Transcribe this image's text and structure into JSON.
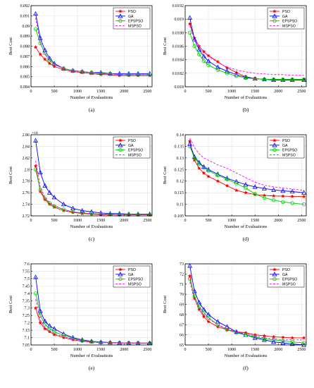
{
  "styles": {
    "PSO": {
      "color": "#ff0000",
      "marker": "star",
      "dash": ""
    },
    "GA": {
      "color": "#0000ff",
      "marker": "triangle",
      "dash": ""
    },
    "EPSPSO": {
      "color": "#00cc00",
      "marker": "circle",
      "dash": ""
    },
    "MSPSO": {
      "color": "#ff00ff",
      "marker": "none",
      "dash": "3,2"
    }
  },
  "chart_data": [
    {
      "type": "line",
      "caption": "(a)",
      "xlabel": "Number of Evaluations",
      "ylabel": "Best Cost",
      "exponent": "",
      "xlim": [
        0,
        2600
      ],
      "ylim": [
        0.084,
        0.092
      ],
      "xticks": [
        0,
        500,
        1000,
        1500,
        2000,
        2500
      ],
      "xtick_labels": [
        "0",
        "500",
        "1000",
        "1500",
        "2000",
        "2500"
      ],
      "yticks": [
        0.084,
        0.085,
        0.086,
        0.087,
        0.088,
        0.089,
        0.09,
        0.091,
        0.092
      ],
      "ytick_labels": [
        "0.084",
        "0.085",
        "0.086",
        "0.087",
        "0.088",
        "0.089",
        "0.09",
        "0.091",
        "0.092"
      ],
      "x": [
        100,
        200,
        300,
        400,
        500,
        700,
        900,
        1100,
        1300,
        1500,
        1700,
        1900,
        2100,
        2300,
        2550
      ],
      "series": [
        {
          "name": "PSO",
          "values": [
            0.0879,
            0.0872,
            0.0867,
            0.0863,
            0.086,
            0.0857,
            0.0855,
            0.0854,
            0.0853,
            0.0852,
            0.0852,
            0.0851,
            0.0851,
            0.0851,
            0.0851
          ]
        },
        {
          "name": "GA",
          "values": [
            0.0912,
            0.0888,
            0.0876,
            0.0868,
            0.0863,
            0.0858,
            0.0856,
            0.0855,
            0.0854,
            0.0854,
            0.0853,
            0.0853,
            0.0853,
            0.0853,
            0.0853
          ]
        },
        {
          "name": "EPSPSO",
          "values": [
            0.0897,
            0.0883,
            0.0873,
            0.0866,
            0.0862,
            0.0858,
            0.0856,
            0.0855,
            0.0854,
            0.0853,
            0.0853,
            0.0852,
            0.0852,
            0.0852,
            0.0852
          ]
        },
        {
          "name": "MSPSO",
          "values": [
            0.0908,
            0.0884,
            0.0872,
            0.0866,
            0.0862,
            0.0858,
            0.0856,
            0.0855,
            0.0854,
            0.0853,
            0.0853,
            0.0852,
            0.0852,
            0.0852,
            0.0852
          ]
        }
      ]
    },
    {
      "type": "line",
      "caption": "(b)",
      "xlabel": "Number of Evaluations",
      "ylabel": "Best Cost",
      "exponent": "",
      "xlim": [
        0,
        2600
      ],
      "ylim": [
        0.018,
        0.0192
      ],
      "xticks": [
        0,
        500,
        1000,
        1500,
        2000,
        2500
      ],
      "xtick_labels": [
        "0",
        "500",
        "1000",
        "1500",
        "2000",
        "2500"
      ],
      "yticks": [
        0.018,
        0.0182,
        0.0184,
        0.0186,
        0.0188,
        0.019,
        0.0192
      ],
      "ytick_labels": [
        "0.018",
        "0.0182",
        "0.0184",
        "0.0186",
        "0.0188",
        "0.019",
        "0.0192"
      ],
      "x": [
        100,
        200,
        300,
        400,
        500,
        700,
        900,
        1100,
        1300,
        1500,
        1700,
        1900,
        2100,
        2300,
        2550
      ],
      "series": [
        {
          "name": "PSO",
          "values": [
            0.01893,
            0.01872,
            0.0186,
            0.01852,
            0.01846,
            0.01837,
            0.01828,
            0.01821,
            0.01815,
            0.01812,
            0.01811,
            0.01811,
            0.01811,
            0.01811,
            0.01811
          ]
        },
        {
          "name": "GA",
          "values": [
            0.01902,
            0.0187,
            0.01855,
            0.01845,
            0.01838,
            0.01829,
            0.01823,
            0.01818,
            0.01814,
            0.01812,
            0.01811,
            0.0181,
            0.0181,
            0.0181,
            0.0181
          ]
        },
        {
          "name": "EPSPSO",
          "values": [
            0.0188,
            0.0186,
            0.01848,
            0.01838,
            0.01832,
            0.01825,
            0.0182,
            0.01816,
            0.01813,
            0.01812,
            0.01811,
            0.01811,
            0.01811,
            0.01811,
            0.01811
          ]
        },
        {
          "name": "MSPSO",
          "values": [
            0.0189,
            0.0187,
            0.0186,
            0.01852,
            0.01845,
            0.01836,
            0.01829,
            0.01825,
            0.01822,
            0.0182,
            0.01819,
            0.01818,
            0.01818,
            0.01817,
            0.01817
          ]
        }
      ]
    },
    {
      "type": "line",
      "caption": "(c)",
      "xlabel": "Number of Evaluations",
      "ylabel": "Best Cost",
      "exponent": "10",
      "xlim": [
        0,
        2600
      ],
      "ylim": [
        2.72,
        2.86
      ],
      "xticks": [
        0,
        500,
        1000,
        1500,
        2000,
        2500
      ],
      "xtick_labels": [
        "0",
        "500",
        "1000",
        "1500",
        "2000",
        "2500"
      ],
      "yticks": [
        2.72,
        2.74,
        2.76,
        2.78,
        2.8,
        2.82,
        2.84,
        2.86
      ],
      "ytick_labels": [
        "2.72",
        "2.74",
        "2.76",
        "2.78",
        "2.8",
        "2.82",
        "2.84",
        "2.86"
      ],
      "x": [
        100,
        200,
        300,
        400,
        500,
        700,
        900,
        1100,
        1300,
        1500,
        1700,
        1900,
        2100,
        2300,
        2550
      ],
      "series": [
        {
          "name": "PSO",
          "values": [
            2.806,
            2.762,
            2.748,
            2.74,
            2.735,
            2.729,
            2.726,
            2.724,
            2.723,
            2.722,
            2.722,
            2.722,
            2.722,
            2.722,
            2.722
          ]
        },
        {
          "name": "GA",
          "values": [
            2.85,
            2.795,
            2.772,
            2.76,
            2.752,
            2.74,
            2.733,
            2.729,
            2.727,
            2.725,
            2.724,
            2.724,
            2.723,
            2.723,
            2.723
          ]
        },
        {
          "name": "EPSPSO",
          "values": [
            2.8,
            2.765,
            2.75,
            2.742,
            2.737,
            2.731,
            2.727,
            2.725,
            2.724,
            2.723,
            2.723,
            2.722,
            2.722,
            2.722,
            2.722
          ]
        },
        {
          "name": "MSPSO",
          "values": [
            2.815,
            2.77,
            2.752,
            2.743,
            2.738,
            2.731,
            2.727,
            2.725,
            2.724,
            2.723,
            2.723,
            2.722,
            2.722,
            2.722,
            2.722
          ]
        }
      ]
    },
    {
      "type": "line",
      "caption": "(d)",
      "xlabel": "Number of Evaluations",
      "ylabel": "Best Cost",
      "exponent": "",
      "xlim": [
        0,
        2600
      ],
      "ylim": [
        0.105,
        0.14
      ],
      "xticks": [
        0,
        500,
        1000,
        1500,
        2000,
        2500
      ],
      "xtick_labels": [
        "0",
        "500",
        "1000",
        "1500",
        "2000",
        "2500"
      ],
      "yticks": [
        0.105,
        0.11,
        0.115,
        0.12,
        0.125,
        0.13,
        0.135,
        0.14
      ],
      "ytick_labels": [
        "0.105",
        "0.11",
        "0.115",
        "0.12",
        "0.125",
        "0.13",
        "0.135",
        "0.14"
      ],
      "x": [
        100,
        200,
        300,
        400,
        500,
        700,
        900,
        1100,
        1300,
        1500,
        1700,
        1900,
        2100,
        2300,
        2550
      ],
      "series": [
        {
          "name": "PSO",
          "values": [
            0.1372,
            0.129,
            0.1255,
            0.1235,
            0.122,
            0.12,
            0.118,
            0.116,
            0.115,
            0.1142,
            0.1138,
            0.1136,
            0.1135,
            0.1134,
            0.1133
          ]
        },
        {
          "name": "GA",
          "values": [
            0.136,
            0.1305,
            0.128,
            0.1262,
            0.125,
            0.123,
            0.1212,
            0.1198,
            0.1185,
            0.1175,
            0.1168,
            0.1162,
            0.1158,
            0.1155,
            0.115
          ]
        },
        {
          "name": "EPSPSO",
          "values": [
            0.135,
            0.13,
            0.1275,
            0.1258,
            0.1245,
            0.1225,
            0.1208,
            0.119,
            0.117,
            0.1145,
            0.1128,
            0.1118,
            0.111,
            0.1105,
            0.11
          ]
        },
        {
          "name": "MSPSO",
          "values": [
            0.1385,
            0.1345,
            0.1318,
            0.13,
            0.129,
            0.127,
            0.1255,
            0.1235,
            0.1215,
            0.1195,
            0.1182,
            0.1175,
            0.117,
            0.1166,
            0.116
          ]
        }
      ]
    },
    {
      "type": "line",
      "caption": "(e)",
      "xlabel": "Number of Evaluations",
      "ylabel": "Best Cost",
      "exponent": "",
      "xlim": [
        0,
        2600
      ],
      "ylim": [
        7.05,
        7.6
      ],
      "xticks": [
        0,
        500,
        1000,
        1500,
        2000,
        2500
      ],
      "xtick_labels": [
        "0",
        "500",
        "1000",
        "1500",
        "2000",
        "2500"
      ],
      "yticks": [
        7.05,
        7.1,
        7.15,
        7.2,
        7.25,
        7.3,
        7.35,
        7.4,
        7.45,
        7.5,
        7.55,
        7.6
      ],
      "ytick_labels": [
        "7.05",
        "7.1",
        "7.15",
        "7.2",
        "7.25",
        "7.3",
        "7.35",
        "7.4",
        "7.45",
        "7.5",
        "7.55",
        "7.6"
      ],
      "x": [
        100,
        200,
        300,
        400,
        500,
        700,
        900,
        1100,
        1300,
        1500,
        1700,
        1900,
        2100,
        2300,
        2550
      ],
      "series": [
        {
          "name": "PSO",
          "values": [
            7.3,
            7.2,
            7.16,
            7.14,
            7.12,
            7.1,
            7.085,
            7.075,
            7.07,
            7.067,
            7.065,
            7.064,
            7.063,
            7.063,
            7.062
          ]
        },
        {
          "name": "GA",
          "values": [
            7.51,
            7.28,
            7.21,
            7.18,
            7.16,
            7.125,
            7.1,
            7.085,
            7.075,
            7.07,
            7.067,
            7.065,
            7.064,
            7.063,
            7.063
          ]
        },
        {
          "name": "EPSPSO",
          "values": [
            7.4,
            7.25,
            7.19,
            7.16,
            7.14,
            7.115,
            7.095,
            7.08,
            7.072,
            7.068,
            7.066,
            7.065,
            7.064,
            7.064,
            7.063
          ]
        },
        {
          "name": "MSPSO",
          "values": [
            7.36,
            7.22,
            7.17,
            7.145,
            7.13,
            7.105,
            7.09,
            7.078,
            7.07,
            7.066,
            7.064,
            7.063,
            7.062,
            7.062,
            7.061
          ]
        }
      ]
    },
    {
      "type": "line",
      "caption": "(f)",
      "xlabel": "Number of Evaluations",
      "ylabel": "Best Cost",
      "exponent": "",
      "xlim": [
        0,
        2600
      ],
      "ylim": [
        65,
        73
      ],
      "xticks": [
        0,
        500,
        1000,
        1500,
        2000,
        2500
      ],
      "xtick_labels": [
        "0",
        "500",
        "1000",
        "1500",
        "2000",
        "2500"
      ],
      "yticks": [
        65,
        66,
        67,
        68,
        69,
        70,
        71,
        72,
        73
      ],
      "ytick_labels": [
        "65",
        "66",
        "67",
        "68",
        "69",
        "70",
        "71",
        "72",
        "73"
      ],
      "x": [
        100,
        200,
        300,
        400,
        500,
        700,
        900,
        1100,
        1300,
        1500,
        1700,
        1900,
        2100,
        2300,
        2550
      ],
      "series": [
        {
          "name": "PSO",
          "values": [
            71.8,
            69.6,
            68.5,
            67.8,
            67.3,
            66.8,
            66.5,
            66.3,
            66.2,
            66.0,
            65.9,
            65.8,
            65.75,
            65.7,
            65.7
          ]
        },
        {
          "name": "GA",
          "values": [
            72.8,
            70.3,
            69.2,
            68.5,
            68.0,
            67.3,
            66.8,
            66.3,
            66.0,
            65.7,
            65.5,
            65.3,
            65.2,
            65.1,
            65.0
          ]
        },
        {
          "name": "EPSPSO",
          "values": [
            71.5,
            69.8,
            68.8,
            68.2,
            67.7,
            67.0,
            66.5,
            66.2,
            66.0,
            65.8,
            65.6,
            65.5,
            65.4,
            65.3,
            65.2
          ]
        },
        {
          "name": "MSPSO",
          "values": [
            71.2,
            69.5,
            68.7,
            68.0,
            67.6,
            67.0,
            66.6,
            66.3,
            66.1,
            65.9,
            65.7,
            65.6,
            65.5,
            65.5,
            65.5
          ]
        }
      ]
    }
  ]
}
